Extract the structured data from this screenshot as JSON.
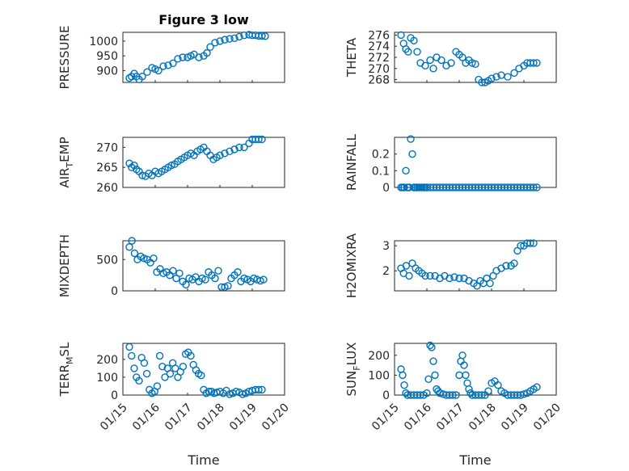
{
  "figure": {
    "title": "Figure 3 low"
  },
  "colors": {
    "marker": "#0072BD",
    "axis": "#262626",
    "grid": "#dcdcdc"
  },
  "chart_data": [
    {
      "type": "scatter",
      "ylabel": "PRESSURE",
      "xlim": [
        0,
        5
      ],
      "ylim": [
        860,
        1030
      ],
      "yticks": [
        900,
        950,
        1000
      ],
      "yticklabels": [
        "900",
        "950",
        "1000"
      ],
      "x": [
        0.2,
        0.27,
        0.35,
        0.42,
        0.5,
        0.6,
        0.75,
        0.9,
        1.0,
        1.1,
        1.25,
        1.4,
        1.55,
        1.7,
        1.85,
        2.0,
        2.1,
        2.2,
        2.35,
        2.5,
        2.6,
        2.7,
        2.85,
        3.0,
        3.15,
        3.3,
        3.45,
        3.6,
        3.75,
        3.9,
        4.0,
        4.1,
        4.2,
        4.3,
        4.4
      ],
      "y": [
        875,
        880,
        890,
        880,
        870,
        880,
        895,
        910,
        905,
        900,
        915,
        918,
        925,
        940,
        945,
        945,
        950,
        955,
        945,
        950,
        960,
        980,
        995,
        1000,
        1005,
        1008,
        1010,
        1015,
        1020,
        1022,
        1020,
        1020,
        1018,
        1018,
        1017
      ]
    },
    {
      "type": "scatter",
      "ylabel": "THETA",
      "xlim": [
        0,
        5
      ],
      "ylim": [
        267.5,
        276.5
      ],
      "yticks": [
        268,
        270,
        272,
        274,
        276
      ],
      "yticklabels": [
        "268",
        "270",
        "272",
        "274",
        "276"
      ],
      "x": [
        0.2,
        0.28,
        0.35,
        0.42,
        0.5,
        0.6,
        0.7,
        0.8,
        0.95,
        1.1,
        1.2,
        1.3,
        1.45,
        1.6,
        1.75,
        1.9,
        2.0,
        2.1,
        2.2,
        2.3,
        2.4,
        2.5,
        2.6,
        2.7,
        2.8,
        2.9,
        3.0,
        3.15,
        3.3,
        3.5,
        3.7,
        3.85,
        4.0,
        4.1,
        4.2,
        4.3,
        4.4
      ],
      "y": [
        276,
        274.5,
        273.5,
        273,
        275.5,
        275,
        273,
        271,
        270.5,
        271.5,
        270,
        272,
        271.5,
        270.5,
        271,
        273,
        272.5,
        272,
        271,
        271.5,
        271,
        270.8,
        268,
        267.3,
        267.5,
        267.8,
        268.2,
        268.5,
        268.8,
        268.5,
        269.2,
        270,
        270.5,
        271,
        271,
        271,
        271
      ]
    },
    {
      "type": "scatter",
      "ylabel": "AIR_TEMP",
      "xlim": [
        0,
        5
      ],
      "ylim": [
        260,
        272.5
      ],
      "yticks": [
        260,
        265,
        270
      ],
      "yticklabels": [
        "260",
        "265",
        "270"
      ],
      "x": [
        0.2,
        0.27,
        0.35,
        0.42,
        0.5,
        0.6,
        0.7,
        0.8,
        0.9,
        1.0,
        1.1,
        1.2,
        1.3,
        1.4,
        1.5,
        1.6,
        1.7,
        1.8,
        1.9,
        2.0,
        2.1,
        2.2,
        2.3,
        2.4,
        2.5,
        2.6,
        2.7,
        2.8,
        2.9,
        3.0,
        3.15,
        3.3,
        3.45,
        3.6,
        3.75,
        3.9,
        4.0,
        4.1,
        4.2,
        4.3
      ],
      "y": [
        266,
        265,
        265.5,
        264.5,
        264,
        263,
        262.8,
        263.5,
        263,
        264,
        263.5,
        264,
        264.5,
        265,
        265.5,
        265.8,
        266.5,
        267,
        267.5,
        268,
        268.5,
        268,
        269,
        269.5,
        270,
        269,
        268,
        267,
        267.5,
        268,
        268.5,
        269,
        269.5,
        270,
        270,
        271,
        272,
        272,
        272,
        272
      ]
    },
    {
      "type": "scatter",
      "ylabel": "RAINFALL",
      "xlim": [
        0,
        5
      ],
      "ylim": [
        0,
        0.3
      ],
      "yticks": [
        0,
        0.1,
        0.2
      ],
      "yticklabels": [
        "0",
        "0.1",
        "0.2"
      ],
      "x": [
        0.2,
        0.25,
        0.3,
        0.35,
        0.4,
        0.45,
        0.5,
        0.55,
        0.6,
        0.65,
        0.7,
        0.75,
        0.8,
        0.85,
        0.9,
        0.95,
        1.0,
        1.1,
        1.2,
        1.3,
        1.4,
        1.5,
        1.6,
        1.7,
        1.8,
        1.9,
        2.0,
        2.1,
        2.2,
        2.3,
        2.4,
        2.5,
        2.6,
        2.7,
        2.8,
        2.9,
        3.0,
        3.1,
        3.2,
        3.3,
        3.4,
        3.5,
        3.6,
        3.7,
        3.8,
        3.9,
        4.0,
        4.1,
        4.2,
        4.3,
        4.4
      ],
      "y": [
        0,
        0,
        0,
        0.1,
        0,
        0,
        0.29,
        0.2,
        0,
        0,
        0,
        0,
        0,
        0,
        0,
        0,
        0,
        0,
        0,
        0,
        0,
        0,
        0,
        0,
        0,
        0,
        0,
        0,
        0,
        0,
        0,
        0,
        0,
        0,
        0,
        0,
        0,
        0,
        0,
        0,
        0,
        0,
        0,
        0,
        0,
        0,
        0,
        0,
        0,
        0,
        0
      ]
    },
    {
      "type": "scatter",
      "ylabel": "MIXDEPTH",
      "xlim": [
        0,
        5
      ],
      "ylim": [
        0,
        800
      ],
      "yticks": [
        0,
        500
      ],
      "yticklabels": [
        "0",
        "500"
      ],
      "x": [
        0.2,
        0.28,
        0.36,
        0.45,
        0.55,
        0.65,
        0.75,
        0.85,
        0.95,
        1.05,
        1.15,
        1.25,
        1.35,
        1.45,
        1.55,
        1.65,
        1.75,
        1.85,
        1.95,
        2.05,
        2.15,
        2.25,
        2.35,
        2.45,
        2.55,
        2.65,
        2.75,
        2.85,
        2.95,
        3.05,
        3.15,
        3.25,
        3.35,
        3.45,
        3.55,
        3.65,
        3.75,
        3.85,
        3.95,
        4.05,
        4.15,
        4.25,
        4.35
      ],
      "y": [
        700,
        800,
        600,
        500,
        550,
        520,
        500,
        450,
        520,
        300,
        350,
        280,
        300,
        250,
        320,
        200,
        280,
        150,
        100,
        200,
        180,
        220,
        150,
        200,
        180,
        300,
        250,
        200,
        320,
        60,
        60,
        80,
        200,
        250,
        300,
        150,
        200,
        180,
        150,
        200,
        180,
        160,
        180
      ]
    },
    {
      "type": "scatter",
      "ylabel": "H2OMIXRA",
      "xlim": [
        0,
        5
      ],
      "ylim": [
        1.2,
        3.2
      ],
      "yticks": [
        2,
        3
      ],
      "yticklabels": [
        "2",
        "3"
      ],
      "x": [
        0.2,
        0.28,
        0.36,
        0.45,
        0.55,
        0.65,
        0.75,
        0.85,
        0.95,
        1.1,
        1.25,
        1.4,
        1.55,
        1.7,
        1.85,
        2.0,
        2.15,
        2.3,
        2.45,
        2.55,
        2.65,
        2.75,
        2.85,
        2.95,
        3.05,
        3.15,
        3.3,
        3.45,
        3.6,
        3.7,
        3.8,
        3.9,
        4.0,
        4.1,
        4.2,
        4.3
      ],
      "y": [
        2.1,
        1.9,
        2.2,
        1.8,
        2.3,
        2.1,
        2.0,
        1.9,
        1.8,
        1.8,
        1.8,
        1.7,
        1.8,
        1.7,
        1.75,
        1.7,
        1.7,
        1.6,
        1.5,
        1.4,
        1.6,
        1.5,
        1.7,
        1.5,
        1.8,
        2.0,
        2.1,
        2.2,
        2.2,
        2.3,
        2.8,
        3.0,
        3.0,
        3.1,
        3.1,
        3.1
      ]
    },
    {
      "type": "scatter",
      "ylabel": "TERR_MSL",
      "xlim": [
        0,
        5
      ],
      "ylim": [
        0,
        290
      ],
      "yticks": [
        0,
        100,
        200
      ],
      "yticklabels": [
        "0",
        "100",
        "200"
      ],
      "x": [
        0.2,
        0.27,
        0.35,
        0.42,
        0.5,
        0.58,
        0.66,
        0.74,
        0.82,
        0.9,
        0.98,
        1.06,
        1.14,
        1.22,
        1.3,
        1.38,
        1.46,
        1.54,
        1.62,
        1.7,
        1.78,
        1.86,
        1.94,
        2.02,
        2.1,
        2.18,
        2.26,
        2.34,
        2.42,
        2.5,
        2.58,
        2.66,
        2.74,
        2.82,
        2.9,
        3.0,
        3.1,
        3.2,
        3.3,
        3.4,
        3.5,
        3.6,
        3.7,
        3.8,
        3.9,
        4.0,
        4.1,
        4.2,
        4.3
      ],
      "y": [
        270,
        220,
        150,
        100,
        80,
        210,
        180,
        120,
        30,
        10,
        20,
        50,
        220,
        160,
        100,
        150,
        120,
        180,
        150,
        100,
        130,
        160,
        230,
        240,
        220,
        170,
        140,
        120,
        110,
        30,
        10,
        20,
        20,
        10,
        15,
        20,
        10,
        25,
        5,
        10,
        20,
        15,
        5,
        10,
        20,
        25,
        30,
        30,
        30
      ]
    },
    {
      "type": "scatter",
      "ylabel": "SUN_FLUX",
      "xlim": [
        0,
        5
      ],
      "ylim": [
        0,
        260
      ],
      "yticks": [
        0,
        100,
        200
      ],
      "yticklabels": [
        "0",
        "100",
        "200"
      ],
      "xticklabels": [
        "01/15",
        "01/16",
        "01/17",
        "01/18",
        "01/19",
        "01/20"
      ],
      "xlabel": "Time",
      "x": [
        0.2,
        0.25,
        0.3,
        0.35,
        0.4,
        0.5,
        0.6,
        0.7,
        0.8,
        0.9,
        1.0,
        1.05,
        1.1,
        1.15,
        1.2,
        1.25,
        1.3,
        1.35,
        1.4,
        1.5,
        1.6,
        1.7,
        1.8,
        1.9,
        2.0,
        2.05,
        2.1,
        2.15,
        2.2,
        2.25,
        2.3,
        2.35,
        2.4,
        2.5,
        2.6,
        2.7,
        2.8,
        2.9,
        3.0,
        3.1,
        3.2,
        3.3,
        3.4,
        3.5,
        3.6,
        3.7,
        3.8,
        3.9,
        4.0,
        4.1,
        4.2,
        4.3,
        4.4
      ],
      "y": [
        130,
        100,
        50,
        10,
        0,
        0,
        0,
        0,
        0,
        0,
        10,
        80,
        250,
        240,
        170,
        100,
        30,
        20,
        10,
        5,
        0,
        0,
        0,
        0,
        100,
        170,
        200,
        150,
        100,
        60,
        30,
        10,
        0,
        0,
        0,
        0,
        0,
        20,
        60,
        70,
        50,
        20,
        10,
        0,
        0,
        0,
        0,
        0,
        5,
        10,
        20,
        30,
        40
      ]
    }
  ]
}
